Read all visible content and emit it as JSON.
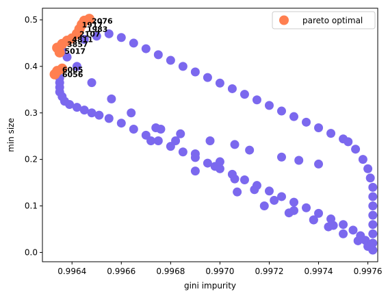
{
  "chart_data": {
    "type": "scatter",
    "xlabel": "gini impurity",
    "ylabel": "min size",
    "xlim": [
      0.99628,
      0.99764
    ],
    "ylim": [
      -0.02,
      0.525
    ],
    "xticks": [
      0.9964,
      0.9966,
      0.9968,
      0.997,
      0.9972,
      0.9974,
      0.9976
    ],
    "xtick_labels": [
      "0.9964",
      "0.9966",
      "0.9968",
      "0.9970",
      "0.9972",
      "0.9974",
      "0.9976"
    ],
    "yticks": [
      0.0,
      0.1,
      0.2,
      0.3,
      0.4,
      0.5
    ],
    "ytick_labels": [
      "0.0",
      "0.1",
      "0.2",
      "0.3",
      "0.4",
      "0.5"
    ],
    "grid": false,
    "legend_placement": "top-right",
    "series": [
      {
        "color": "#7b68ee",
        "points": [
          [
            0.99762,
            0.005
          ],
          [
            0.9976,
            0.013
          ],
          [
            0.99756,
            0.025
          ],
          [
            0.9975,
            0.04
          ],
          [
            0.99744,
            0.055
          ],
          [
            0.99738,
            0.07
          ],
          [
            0.9973,
            0.09
          ],
          [
            0.99722,
            0.112
          ],
          [
            0.99714,
            0.135
          ],
          [
            0.99706,
            0.158
          ],
          [
            0.99698,
            0.185
          ],
          [
            0.9969,
            0.212
          ],
          [
            0.99682,
            0.24
          ],
          [
            0.99674,
            0.268
          ],
          [
            0.99664,
            0.3
          ],
          [
            0.99656,
            0.33
          ],
          [
            0.99648,
            0.365
          ],
          [
            0.99642,
            0.4
          ],
          [
            0.99638,
            0.42
          ],
          [
            0.99636,
            0.435
          ],
          [
            0.99645,
            0.458
          ],
          [
            0.9965,
            0.465
          ],
          [
            0.99655,
            0.47
          ],
          [
            0.9966,
            0.462
          ],
          [
            0.99665,
            0.45
          ],
          [
            0.9967,
            0.438
          ],
          [
            0.99675,
            0.425
          ],
          [
            0.9968,
            0.413
          ],
          [
            0.99685,
            0.4
          ],
          [
            0.9969,
            0.388
          ],
          [
            0.99695,
            0.376
          ],
          [
            0.997,
            0.364
          ],
          [
            0.99705,
            0.352
          ],
          [
            0.9971,
            0.34
          ],
          [
            0.99715,
            0.328
          ],
          [
            0.9972,
            0.316
          ],
          [
            0.99725,
            0.304
          ],
          [
            0.9973,
            0.292
          ],
          [
            0.99735,
            0.28
          ],
          [
            0.9974,
            0.268
          ],
          [
            0.99745,
            0.256
          ],
          [
            0.9975,
            0.244
          ],
          [
            0.99752,
            0.238
          ],
          [
            0.99755,
            0.222
          ],
          [
            0.99758,
            0.2
          ],
          [
            0.9976,
            0.18
          ],
          [
            0.99761,
            0.16
          ],
          [
            0.99762,
            0.14
          ],
          [
            0.99762,
            0.12
          ],
          [
            0.99762,
            0.1
          ],
          [
            0.99762,
            0.08
          ],
          [
            0.99762,
            0.06
          ],
          [
            0.99762,
            0.04
          ],
          [
            0.99762,
            0.02
          ],
          [
            0.99634,
            0.385
          ],
          [
            0.99635,
            0.375
          ],
          [
            0.99635,
            0.365
          ],
          [
            0.99635,
            0.355
          ],
          [
            0.99635,
            0.345
          ],
          [
            0.99636,
            0.335
          ],
          [
            0.99637,
            0.325
          ],
          [
            0.99639,
            0.318
          ],
          [
            0.99642,
            0.312
          ],
          [
            0.99645,
            0.306
          ],
          [
            0.99648,
            0.3
          ],
          [
            0.99651,
            0.295
          ],
          [
            0.99655,
            0.288
          ],
          [
            0.9966,
            0.278
          ],
          [
            0.99665,
            0.265
          ],
          [
            0.9967,
            0.252
          ],
          [
            0.99675,
            0.24
          ],
          [
            0.9968,
            0.228
          ],
          [
            0.99685,
            0.216
          ],
          [
            0.9969,
            0.204
          ],
          [
            0.99695,
            0.192
          ],
          [
            0.997,
            0.18
          ],
          [
            0.99705,
            0.168
          ],
          [
            0.9971,
            0.156
          ],
          [
            0.99715,
            0.144
          ],
          [
            0.9972,
            0.132
          ],
          [
            0.99725,
            0.12
          ],
          [
            0.9973,
            0.108
          ],
          [
            0.99735,
            0.096
          ],
          [
            0.9974,
            0.084
          ],
          [
            0.99745,
            0.072
          ],
          [
            0.9975,
            0.06
          ],
          [
            0.99754,
            0.048
          ],
          [
            0.99757,
            0.036
          ],
          [
            0.99759,
            0.026
          ],
          [
            0.99761,
            0.016
          ],
          [
            0.99672,
            0.24
          ],
          [
            0.9969,
            0.175
          ],
          [
            0.99707,
            0.13
          ],
          [
            0.99718,
            0.1
          ],
          [
            0.99728,
            0.085
          ],
          [
            0.99738,
            0.07
          ],
          [
            0.99746,
            0.058
          ],
          [
            0.997,
            0.195
          ],
          [
            0.99676,
            0.265
          ],
          [
            0.99684,
            0.255
          ],
          [
            0.99696,
            0.24
          ],
          [
            0.99706,
            0.232
          ],
          [
            0.99712,
            0.22
          ],
          [
            0.99725,
            0.205
          ],
          [
            0.99732,
            0.198
          ],
          [
            0.9974,
            0.19
          ]
        ]
      },
      {
        "name": "pareto optimal",
        "color": "#ff7f50",
        "points": [
          [
            0.99633,
            0.383
          ],
          [
            0.99634,
            0.39
          ],
          [
            0.99636,
            0.395
          ],
          [
            0.99635,
            0.43
          ],
          [
            0.99634,
            0.44
          ],
          [
            0.99636,
            0.448
          ],
          [
            0.99638,
            0.455
          ],
          [
            0.9964,
            0.46
          ],
          [
            0.99642,
            0.47
          ],
          [
            0.99643,
            0.48
          ],
          [
            0.99644,
            0.49
          ],
          [
            0.99645,
            0.498
          ],
          [
            0.99647,
            0.502
          ]
        ]
      }
    ],
    "point_labels": [
      {
        "text": "2076",
        "x": 0.99648,
        "y": 0.498
      },
      {
        "text": "1917",
        "x": 0.99644,
        "y": 0.49
      },
      {
        "text": "1983",
        "x": 0.99646,
        "y": 0.48
      },
      {
        "text": "2107",
        "x": 0.99643,
        "y": 0.47
      },
      {
        "text": "4811",
        "x": 0.9964,
        "y": 0.458
      },
      {
        "text": "3857",
        "x": 0.99638,
        "y": 0.448
      },
      {
        "text": "5017",
        "x": 0.99637,
        "y": 0.433
      },
      {
        "text": "6005",
        "x": 0.99636,
        "y": 0.393
      },
      {
        "text": "6056",
        "x": 0.99636,
        "y": 0.383
      }
    ],
    "legend": {
      "label": "pareto optimal"
    }
  }
}
